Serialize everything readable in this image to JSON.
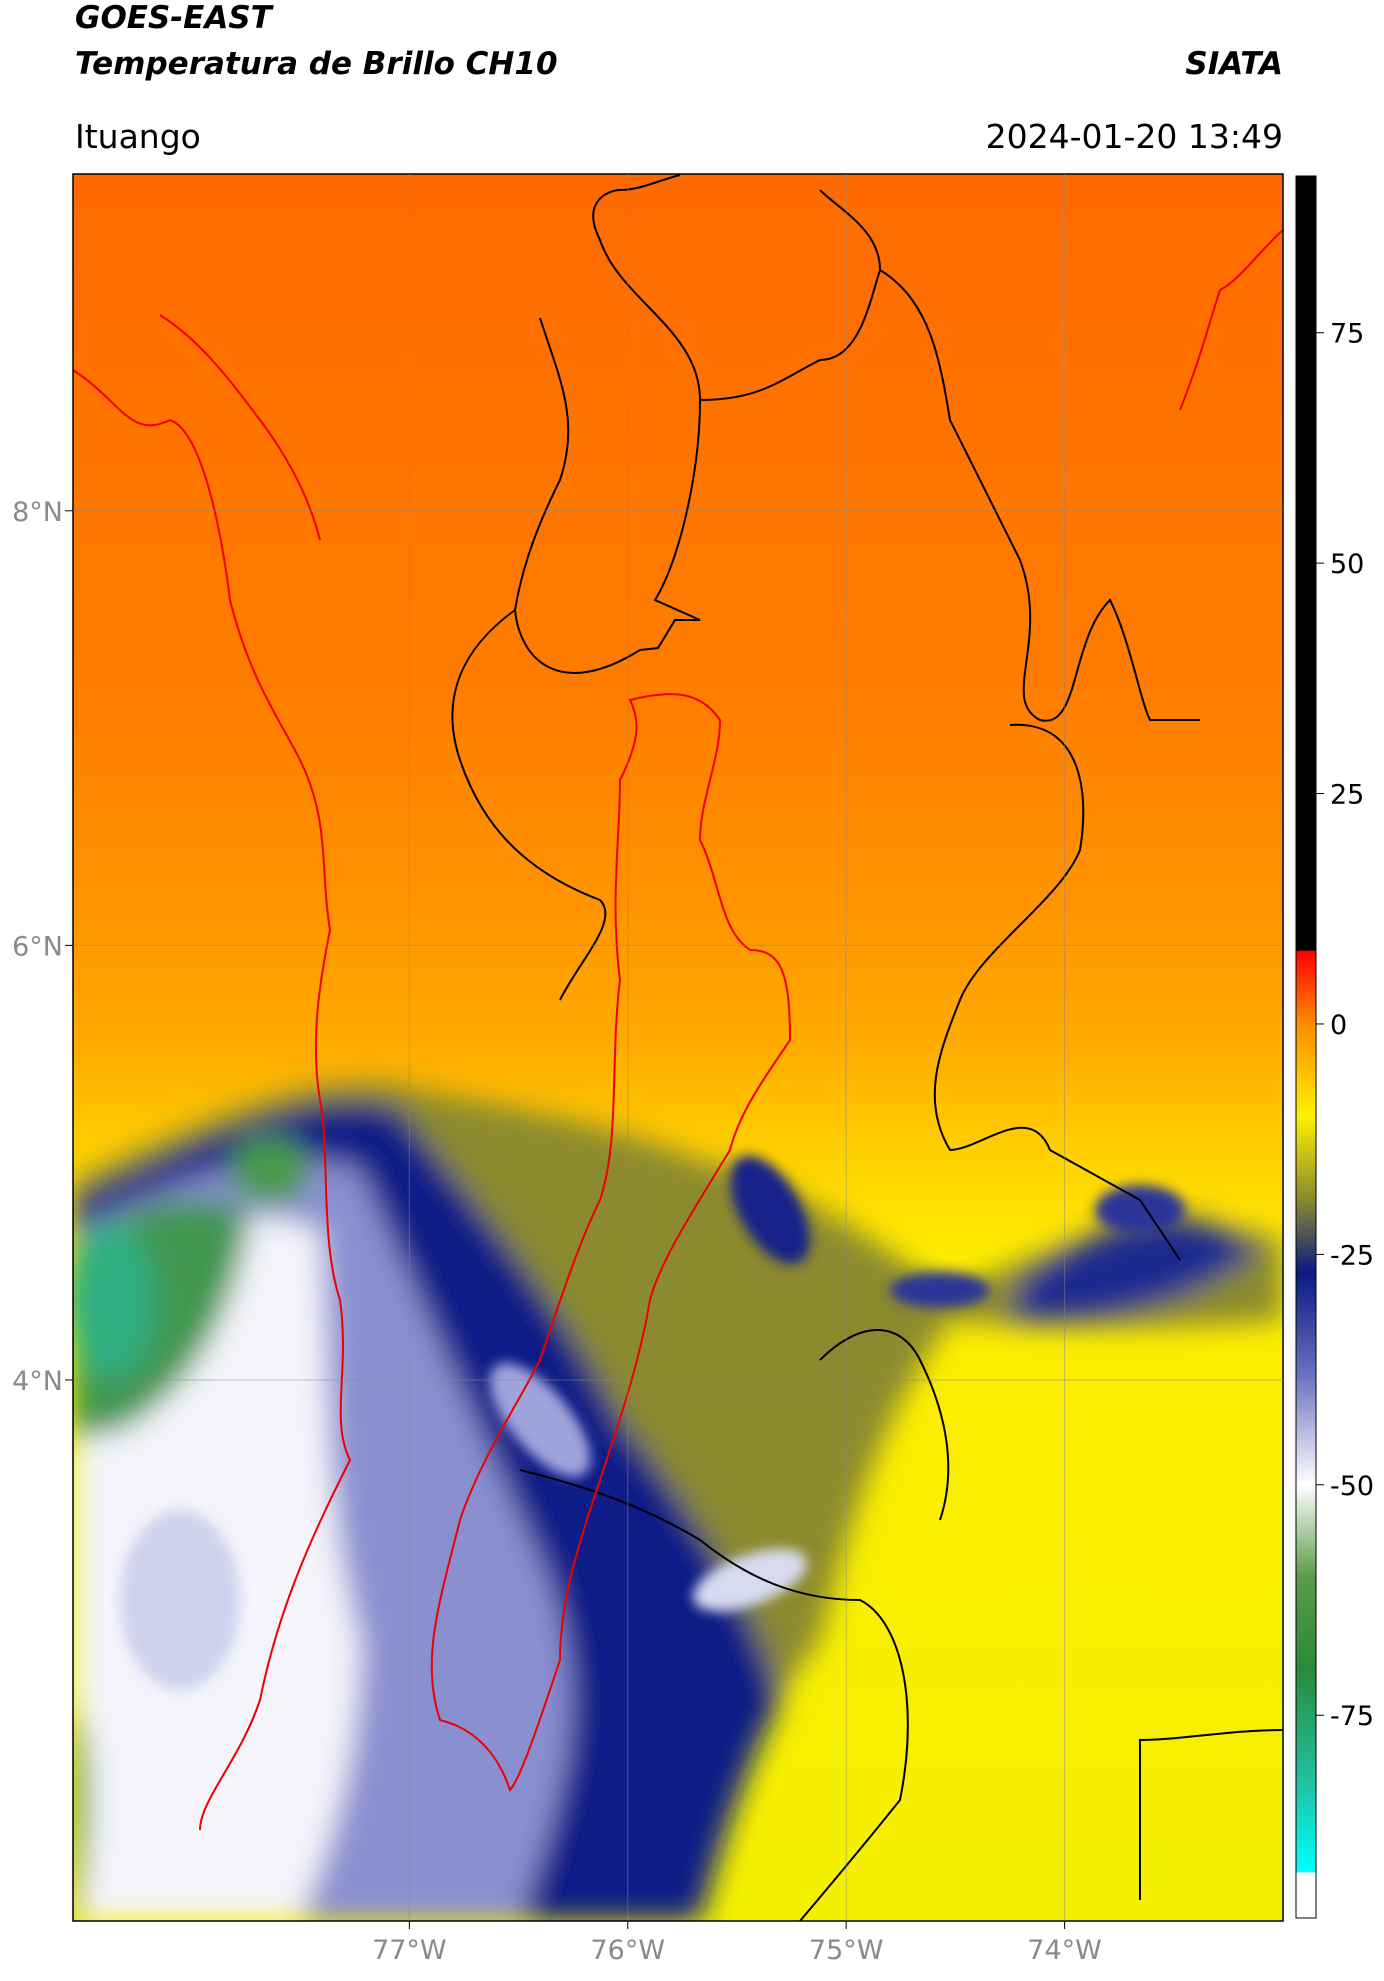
{
  "header": {
    "title": "GOES-EAST",
    "subtitle": "Temperatura de Brillo CH10",
    "source": "SIATA",
    "location": "Ituango",
    "datetime": "2024-01-20 13:49"
  },
  "map": {
    "xlim": [
      -78.54,
      -73.0
    ],
    "ylim": [
      1.51,
      9.55
    ],
    "xticks": [
      {
        "value": -77,
        "label": "77°W"
      },
      {
        "value": -76,
        "label": "76°W"
      },
      {
        "value": -75,
        "label": "75°W"
      },
      {
        "value": -74,
        "label": "74°W"
      }
    ],
    "yticks": [
      {
        "value": 8,
        "label": "8°N"
      },
      {
        "value": 6,
        "label": "6°N"
      },
      {
        "value": 4,
        "label": "4°N"
      }
    ],
    "grid": true
  },
  "colorbar": {
    "clim": [
      -97,
      92
    ],
    "ticks": [
      75,
      50,
      25,
      0,
      -25,
      -50,
      -75
    ],
    "colormap": [
      {
        "value": 92,
        "color": "#000000"
      },
      {
        "value": 8,
        "color": "#000000"
      },
      {
        "value": 7.9,
        "color": "#ff0000"
      },
      {
        "value": 0,
        "color": "#ff8c00"
      },
      {
        "value": -10,
        "color": "#fff000"
      },
      {
        "value": -19,
        "color": "#8a8a30"
      },
      {
        "value": -27,
        "color": "#0a1a80"
      },
      {
        "value": -38,
        "color": "#6a70c0"
      },
      {
        "value": -50,
        "color": "#ffffff"
      },
      {
        "value": -60,
        "color": "#5a9a4a"
      },
      {
        "value": -70,
        "color": "#2a8a3a"
      },
      {
        "value": -82,
        "color": "#20c0a0"
      },
      {
        "value": -92,
        "color": "#00ffff"
      },
      {
        "value": -92.1,
        "color": "#ffffff"
      },
      {
        "value": -97,
        "color": "#ffffff"
      }
    ]
  }
}
